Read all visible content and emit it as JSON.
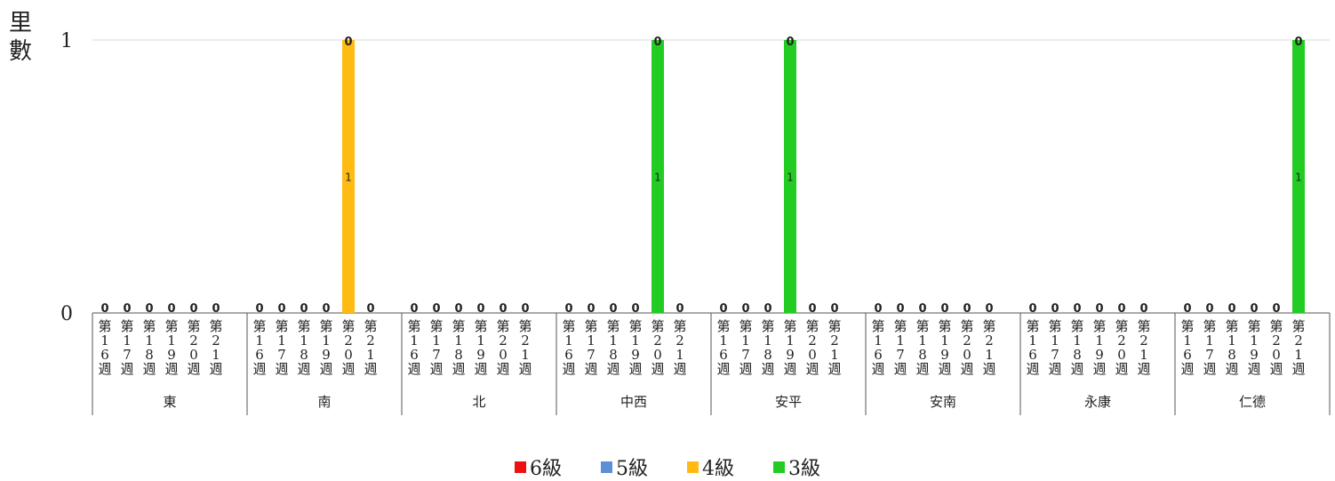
{
  "chart_data": {
    "type": "bar",
    "ylabel": "里數",
    "ylim": [
      0,
      1
    ],
    "yticks": [
      "0",
      "1"
    ],
    "grid": true,
    "legend_position": "bottom",
    "groups": [
      {
        "name": "東",
        "weeks": [
          "第16週",
          "第17週",
          "第18週",
          "第19週",
          "第20週",
          "第21週"
        ]
      },
      {
        "name": "南",
        "weeks": [
          "第16週",
          "第17週",
          "第18週",
          "第19週",
          "第20週",
          "第21週"
        ]
      },
      {
        "name": "北",
        "weeks": [
          "第16週",
          "第17週",
          "第18週",
          "第19週",
          "第20週",
          "第21週"
        ]
      },
      {
        "name": "中西",
        "weeks": [
          "第16週",
          "第17週",
          "第18週",
          "第19週",
          "第20週",
          "第21週"
        ]
      },
      {
        "name": "安平",
        "weeks": [
          "第16週",
          "第17週",
          "第18週",
          "第19週",
          "第20週",
          "第21週"
        ]
      },
      {
        "name": "安南",
        "weeks": [
          "第16週",
          "第17週",
          "第18週",
          "第19週",
          "第20週",
          "第21週"
        ]
      },
      {
        "name": "永康",
        "weeks": [
          "第16週",
          "第17週",
          "第18週",
          "第19週",
          "第20週",
          "第21週"
        ]
      },
      {
        "name": "仁德",
        "weeks": [
          "第16週",
          "第17週",
          "第18週",
          "第19週",
          "第20週",
          "第21週"
        ]
      }
    ],
    "series": [
      {
        "name": "6級",
        "color": "#ee1111",
        "values": [
          [
            0,
            0,
            0,
            0,
            0,
            0
          ],
          [
            0,
            0,
            0,
            0,
            0,
            0
          ],
          [
            0,
            0,
            0,
            0,
            0,
            0
          ],
          [
            0,
            0,
            0,
            0,
            0,
            0
          ],
          [
            0,
            0,
            0,
            0,
            0,
            0
          ],
          [
            0,
            0,
            0,
            0,
            0,
            0
          ],
          [
            0,
            0,
            0,
            0,
            0,
            0
          ],
          [
            0,
            0,
            0,
            0,
            0,
            0
          ]
        ]
      },
      {
        "name": "5級",
        "color": "#5b8fd6",
        "values": [
          [
            0,
            0,
            0,
            0,
            0,
            0
          ],
          [
            0,
            0,
            0,
            0,
            0,
            0
          ],
          [
            0,
            0,
            0,
            0,
            0,
            0
          ],
          [
            0,
            0,
            0,
            0,
            0,
            0
          ],
          [
            0,
            0,
            0,
            0,
            0,
            0
          ],
          [
            0,
            0,
            0,
            0,
            0,
            0
          ],
          [
            0,
            0,
            0,
            0,
            0,
            0
          ],
          [
            0,
            0,
            0,
            0,
            0,
            0
          ]
        ]
      },
      {
        "name": "4級",
        "color": "#ffbb11",
        "values": [
          [
            0,
            0,
            0,
            0,
            0,
            0
          ],
          [
            0,
            0,
            0,
            0,
            1,
            0
          ],
          [
            0,
            0,
            0,
            0,
            0,
            0
          ],
          [
            0,
            0,
            0,
            0,
            0,
            0
          ],
          [
            0,
            0,
            0,
            0,
            0,
            0
          ],
          [
            0,
            0,
            0,
            0,
            0,
            0
          ],
          [
            0,
            0,
            0,
            0,
            0,
            0
          ],
          [
            0,
            0,
            0,
            0,
            0,
            0
          ]
        ]
      },
      {
        "name": "3級",
        "color": "#22cc22",
        "values": [
          [
            0,
            0,
            0,
            0,
            0,
            0
          ],
          [
            0,
            0,
            0,
            0,
            0,
            0
          ],
          [
            0,
            0,
            0,
            0,
            0,
            0
          ],
          [
            0,
            0,
            0,
            0,
            1,
            0
          ],
          [
            0,
            0,
            0,
            1,
            0,
            0
          ],
          [
            0,
            0,
            0,
            0,
            0,
            0
          ],
          [
            0,
            0,
            0,
            0,
            0,
            0
          ],
          [
            0,
            0,
            0,
            0,
            0,
            1
          ]
        ]
      }
    ],
    "top_labels": [
      [
        0,
        0,
        0,
        0,
        0,
        0
      ],
      [
        0,
        0,
        0,
        0,
        0,
        0
      ],
      [
        0,
        0,
        0,
        0,
        0,
        0
      ],
      [
        0,
        0,
        0,
        0,
        0,
        0
      ],
      [
        0,
        0,
        0,
        0,
        0,
        0
      ],
      [
        0,
        0,
        0,
        0,
        0,
        0
      ],
      [
        0,
        0,
        0,
        0,
        0,
        0
      ],
      [
        0,
        0,
        0,
        0,
        0,
        0
      ]
    ]
  }
}
